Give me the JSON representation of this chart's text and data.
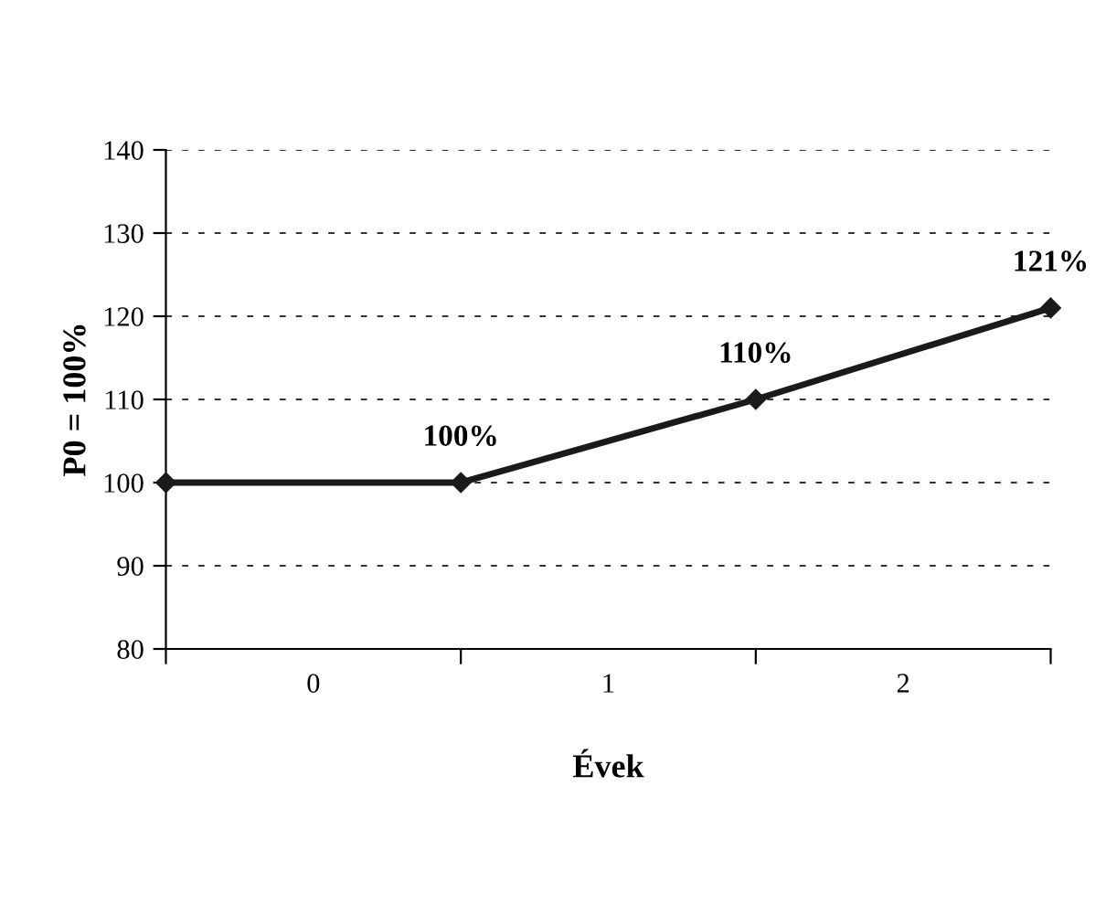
{
  "chart_data": {
    "type": "line",
    "xlabel": "Évek",
    "ylabel": "P0 = 100%",
    "x": [
      0,
      1,
      2,
      3
    ],
    "series": [
      {
        "color": "#1a1a1a",
        "values": [
          100,
          100,
          110,
          121
        ],
        "value_labels": [
          null,
          "100%",
          "110%",
          "121%"
        ]
      }
    ],
    "xlim": [
      0,
      3
    ],
    "xticks": [
      {
        "value": 0,
        "label": null
      },
      {
        "value": 0.5,
        "label": "0"
      },
      {
        "value": 1,
        "label": null
      },
      {
        "value": 1.5,
        "label": "1"
      },
      {
        "value": 2,
        "label": null
      },
      {
        "value": 2.5,
        "label": "2"
      },
      {
        "value": 3,
        "label": null
      }
    ],
    "ylim": [
      80,
      140
    ],
    "yticks": [
      80,
      90,
      100,
      110,
      120,
      130,
      140
    ],
    "grid": "y",
    "legend": false,
    "marker": "diamond",
    "line_style": "solid"
  }
}
